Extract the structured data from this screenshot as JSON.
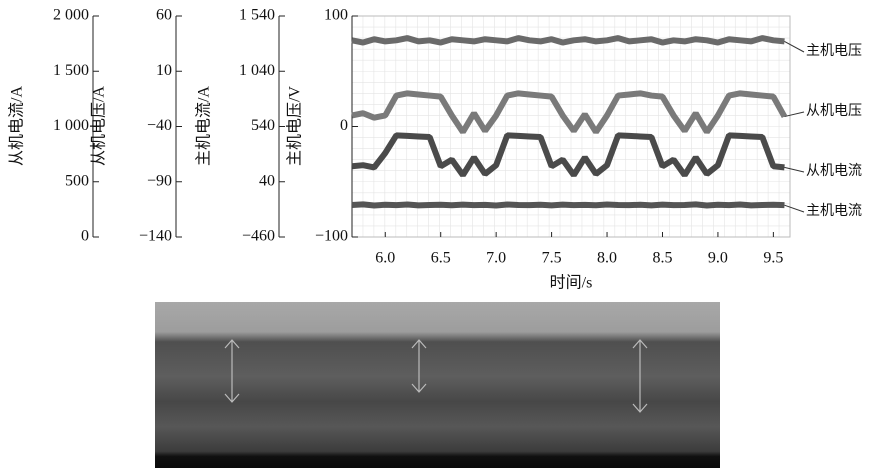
{
  "chart_data": {
    "type": "line",
    "x_label": "时间/s",
    "xlim": [
      5.7,
      9.65
    ],
    "xticks": [
      {
        "value": 6,
        "label": "6.0"
      },
      {
        "value": 6.5,
        "label": "6.5"
      },
      {
        "value": 7,
        "label": "7.0"
      },
      {
        "value": 7.5,
        "label": "7.5"
      },
      {
        "value": 8,
        "label": "8.0"
      },
      {
        "value": 8.5,
        "label": "8.5"
      },
      {
        "value": 9,
        "label": "9.0"
      },
      {
        "value": 9.5,
        "label": "9.5"
      }
    ],
    "grid": true,
    "y_axes": [
      {
        "label": "从机电流/A",
        "ylim": [
          0,
          2000
        ],
        "yticks": [
          {
            "value": 0,
            "label": "0"
          },
          {
            "value": 500,
            "label": "500"
          },
          {
            "value": 1000,
            "label": "1 000"
          },
          {
            "value": 1500,
            "label": "1 500"
          },
          {
            "value": 2000,
            "label": "2 000"
          }
        ]
      },
      {
        "label": "从机电压/A",
        "ylim": [
          -140,
          60
        ],
        "yticks": [
          {
            "value": -140,
            "label": "−140"
          },
          {
            "value": -90,
            "label": "−90"
          },
          {
            "value": -40,
            "label": "−40"
          },
          10,
          60
        ]
      },
      {
        "label": "主机电流/A",
        "ylim": [
          -460,
          1540
        ],
        "yticks": [
          {
            "value": -460,
            "label": "−460"
          },
          40,
          540,
          {
            "value": 1040,
            "label": "1 040"
          },
          {
            "value": 1540,
            "label": "1 540"
          }
        ]
      },
      {
        "label": "主机电压/V",
        "ylim": [
          -100,
          100
        ],
        "yticks": [
          {
            "value": -100,
            "label": "−100"
          },
          0,
          100
        ]
      }
    ],
    "x": [
      5.7,
      5.8,
      5.9,
      6.0,
      6.1,
      6.2,
      6.3,
      6.4,
      6.5,
      6.6,
      6.7,
      6.8,
      6.9,
      7.0,
      7.1,
      7.2,
      7.3,
      7.4,
      7.5,
      7.6,
      7.7,
      7.8,
      7.9,
      8.0,
      8.1,
      8.2,
      8.3,
      8.4,
      8.5,
      8.6,
      8.7,
      8.8,
      8.9,
      9.0,
      9.1,
      9.2,
      9.3,
      9.4,
      9.5,
      9.6
    ],
    "series": [
      {
        "name": "主机电压",
        "axis": 3,
        "color": "#6a6a6a",
        "values": [
          78,
          76,
          79,
          77,
          78,
          80,
          77,
          78,
          76,
          79,
          78,
          77,
          79,
          78,
          77,
          80,
          78,
          77,
          79,
          76,
          78,
          79,
          77,
          78,
          80,
          77,
          78,
          79,
          76,
          78,
          77,
          79,
          78,
          76,
          79,
          78,
          77,
          80,
          78,
          77
        ]
      },
      {
        "name": "从机电压",
        "axis": 1,
        "color": "#7a7a7a",
        "values": [
          -30,
          -28,
          -32,
          -30,
          -12,
          -10,
          -11,
          -12,
          -13,
          -30,
          -45,
          -28,
          -44,
          -30,
          -12,
          -10,
          -11,
          -12,
          -13,
          -30,
          -44,
          -29,
          -45,
          -30,
          -12,
          -11,
          -10,
          -12,
          -13,
          -30,
          -44,
          -28,
          -45,
          -30,
          -12,
          -10,
          -11,
          -12,
          -13,
          -31
        ]
      },
      {
        "name": "从机电流",
        "axis": 0,
        "color": "#4a4a4a",
        "values": [
          640,
          650,
          630,
          760,
          920,
          915,
          910,
          905,
          640,
          700,
          560,
          720,
          570,
          650,
          920,
          915,
          910,
          905,
          640,
          700,
          560,
          720,
          570,
          650,
          920,
          915,
          910,
          905,
          640,
          700,
          560,
          720,
          570,
          650,
          920,
          915,
          910,
          905,
          640,
          630
        ]
      },
      {
        "name": "主机电流",
        "axis": 2,
        "color": "#555555",
        "values": [
          -170,
          -165,
          -175,
          -168,
          -172,
          -166,
          -174,
          -170,
          -168,
          -173,
          -167,
          -171,
          -169,
          -175,
          -166,
          -170,
          -172,
          -168,
          -174,
          -167,
          -171,
          -169,
          -173,
          -166,
          -170,
          -172,
          -168,
          -174,
          -167,
          -171,
          -170,
          -165,
          -175,
          -168,
          -172,
          -166,
          -174,
          -170,
          -168,
          -172
        ]
      }
    ]
  }
}
